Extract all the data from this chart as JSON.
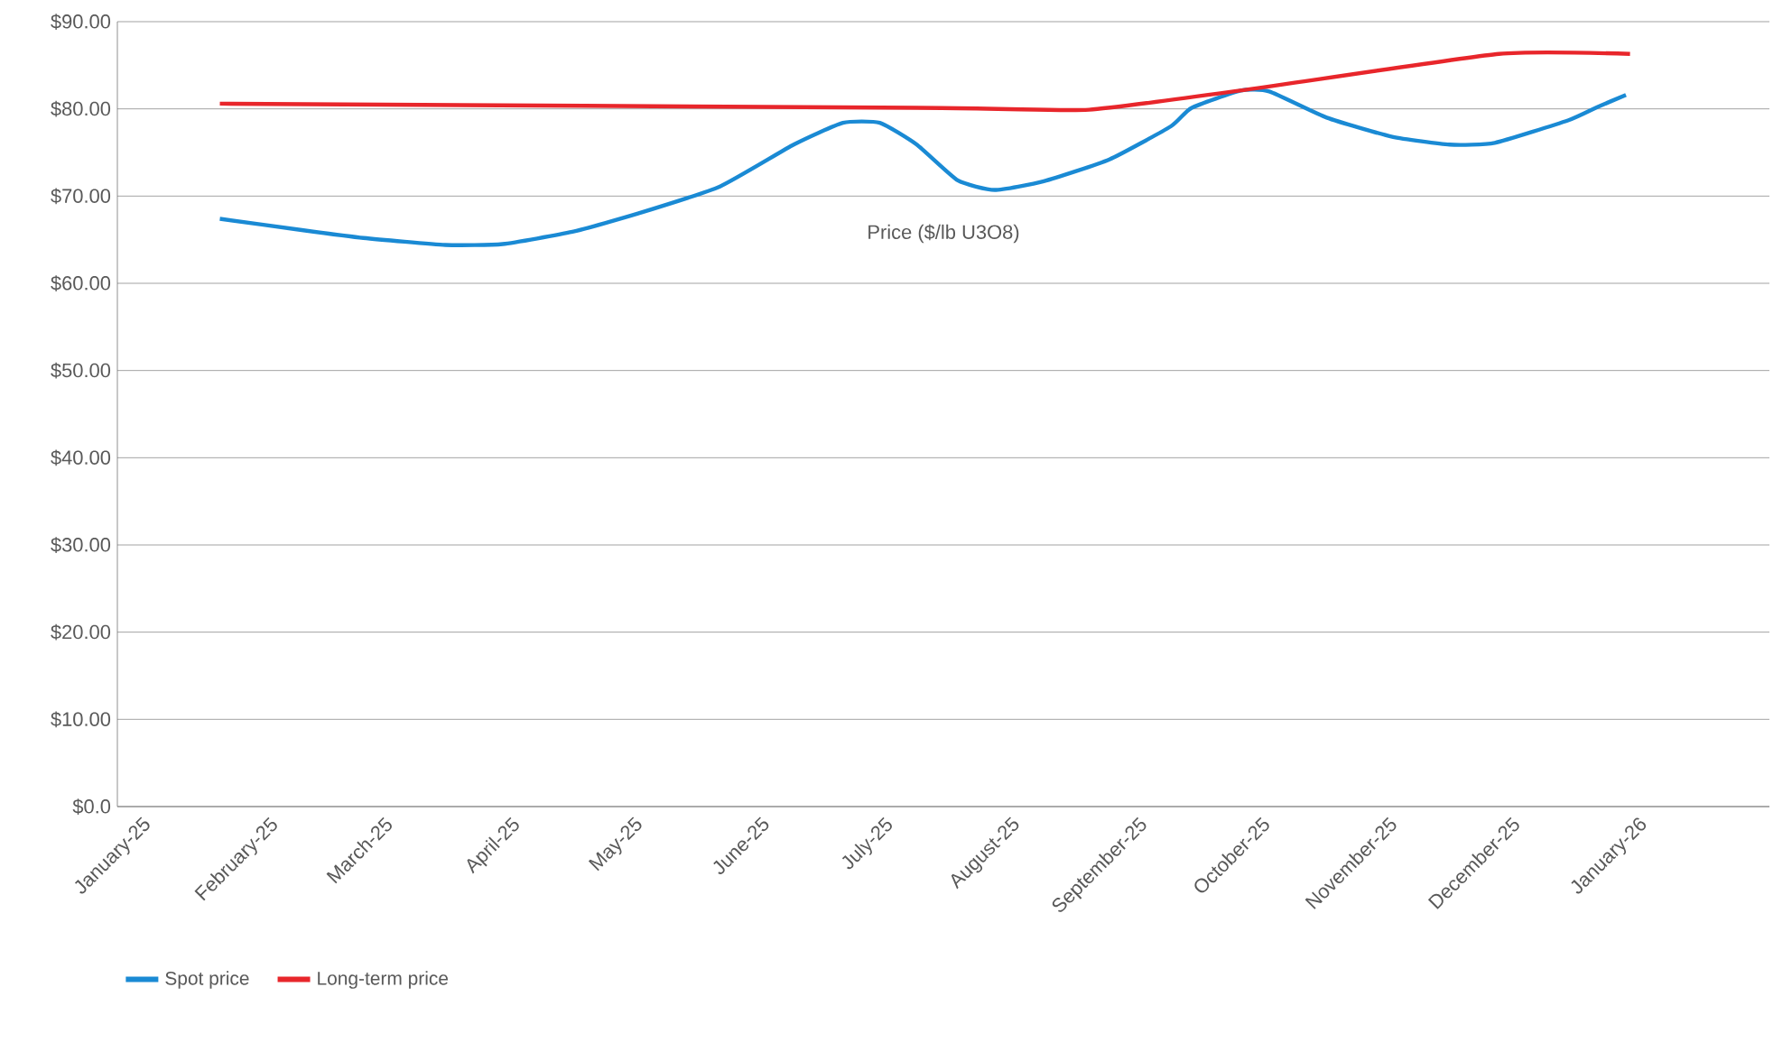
{
  "chart_data": {
    "type": "line",
    "annotations": [
      "Price ($/lb U3O8)"
    ],
    "xlim": [
      "2024-12-26",
      "2026-02-02"
    ],
    "xticks": [
      {
        "value": "2025-01-01",
        "label": "January-25"
      },
      {
        "value": "2025-02-01",
        "label": "February-25"
      },
      {
        "value": "2025-03-01",
        "label": "March-25"
      },
      {
        "value": "2025-04-01",
        "label": "April-25"
      },
      {
        "value": "2025-05-01",
        "label": "May-25"
      },
      {
        "value": "2025-06-01",
        "label": "June-25"
      },
      {
        "value": "2025-07-01",
        "label": "July-25"
      },
      {
        "value": "2025-08-01",
        "label": "August-25"
      },
      {
        "value": "2025-09-01",
        "label": "September-25"
      },
      {
        "value": "2025-10-01",
        "label": "October-25"
      },
      {
        "value": "2025-11-01",
        "label": "November-25"
      },
      {
        "value": "2025-12-01",
        "label": "December-25"
      },
      {
        "value": "2026-01-01",
        "label": "January-26"
      }
    ],
    "ylim": [
      0,
      90
    ],
    "yticks": [
      {
        "value": 0,
        "label": "$0.0"
      },
      {
        "value": 10,
        "label": "$10.00"
      },
      {
        "value": 20,
        "label": "$20.00"
      },
      {
        "value": 30,
        "label": "$30.00"
      },
      {
        "value": 40,
        "label": "$40.00"
      },
      {
        "value": 50,
        "label": "$50.00"
      },
      {
        "value": 60,
        "label": "$60.00"
      },
      {
        "value": 70,
        "label": "$70.00"
      },
      {
        "value": 80,
        "label": "$80.00"
      },
      {
        "value": 90,
        "label": "$90.00"
      }
    ],
    "grid": "y",
    "legend": "bottom left",
    "marker": "none",
    "line_style": "solid",
    "series": [
      {
        "name": "Spot price",
        "color": "#1a8ad4",
        "x": [
          "2025-01-20",
          "2025-02-09",
          "2025-02-24",
          "2025-03-16",
          "2025-03-30",
          "2025-04-16",
          "2025-05-02",
          "2025-05-22",
          "2025-06-09",
          "2025-06-21",
          "2025-06-30",
          "2025-07-09",
          "2025-07-19",
          "2025-07-28",
          "2025-08-09",
          "2025-08-25",
          "2025-09-09",
          "2025-09-14",
          "2025-09-26",
          "2025-10-03",
          "2025-10-17",
          "2025-11-02",
          "2025-11-16",
          "2025-11-27",
          "2025-12-15",
          "2025-12-22",
          "2025-12-29"
        ],
        "values": [
          67.4,
          66.1,
          65.2,
          64.4,
          64.5,
          65.9,
          68.0,
          71.1,
          75.9,
          78.4,
          78.4,
          75.9,
          71.8,
          70.7,
          71.7,
          74.2,
          78.0,
          80.1,
          82.1,
          82.0,
          79.0,
          76.8,
          75.9,
          76.1,
          78.7,
          80.2,
          81.6
        ]
      },
      {
        "name": "Long-term price",
        "color": "#e8262b",
        "x": [
          "2025-01-20",
          "2025-07-15",
          "2025-08-20",
          "2025-09-29",
          "2025-11-28",
          "2025-12-30"
        ],
        "values": [
          80.6,
          80.1,
          79.9,
          82.3,
          86.3,
          86.3
        ]
      }
    ]
  }
}
